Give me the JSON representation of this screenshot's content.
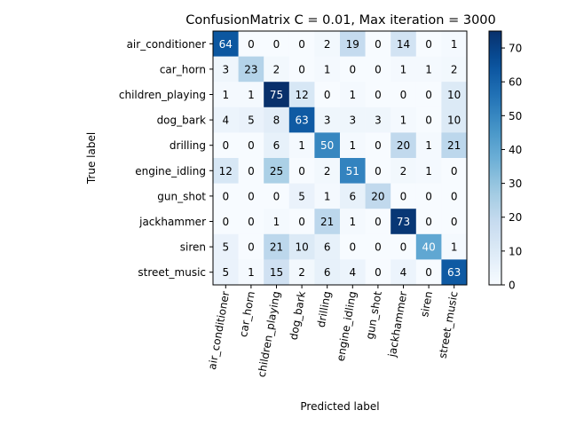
{
  "chart_data": {
    "type": "heatmap",
    "title": "ConfusionMatrix C = 0.01, Max iteration = 3000",
    "xlabel": "Predicted label",
    "ylabel": "True label",
    "row_labels": [
      "air_conditioner",
      "car_horn",
      "children_playing",
      "dog_bark",
      "drilling",
      "engine_idling",
      "gun_shot",
      "jackhammer",
      "siren",
      "street_music"
    ],
    "col_labels": [
      "air_conditioner",
      "car_horn",
      "children_playing",
      "dog_bark",
      "drilling",
      "engine_idling",
      "gun_shot",
      "jackhammer",
      "siren",
      "street_music"
    ],
    "values": [
      [
        64,
        0,
        0,
        0,
        2,
        19,
        0,
        14,
        0,
        1
      ],
      [
        3,
        23,
        2,
        0,
        1,
        0,
        0,
        1,
        1,
        2
      ],
      [
        1,
        1,
        75,
        12,
        0,
        1,
        0,
        0,
        0,
        10
      ],
      [
        4,
        5,
        8,
        63,
        3,
        3,
        3,
        1,
        0,
        10
      ],
      [
        0,
        0,
        6,
        1,
        50,
        1,
        0,
        20,
        1,
        21
      ],
      [
        12,
        0,
        25,
        0,
        2,
        51,
        0,
        2,
        1,
        0
      ],
      [
        0,
        0,
        0,
        5,
        1,
        6,
        20,
        0,
        0,
        0
      ],
      [
        0,
        0,
        1,
        0,
        21,
        1,
        0,
        73,
        0,
        0
      ],
      [
        5,
        0,
        21,
        10,
        6,
        0,
        0,
        0,
        40,
        1
      ],
      [
        5,
        1,
        15,
        2,
        6,
        4,
        0,
        4,
        0,
        63
      ]
    ],
    "colormap": "Blues",
    "vmin": 0,
    "vmax": 75,
    "colorbar_ticks": [
      0,
      10,
      20,
      30,
      40,
      50,
      60,
      70
    ],
    "grid": false
  }
}
